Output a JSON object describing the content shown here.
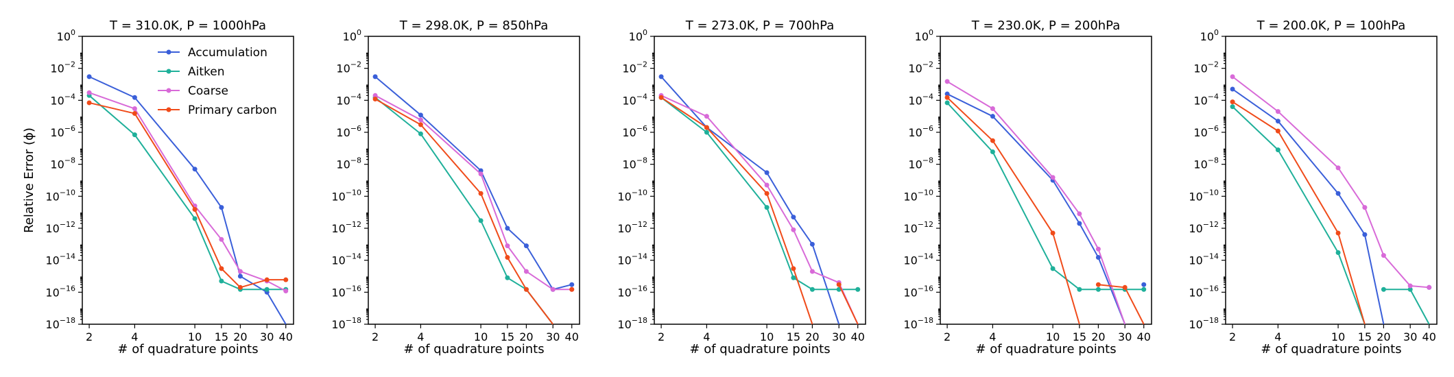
{
  "chart_data": {
    "type": "line",
    "x_scale": "log",
    "y_scale": "log",
    "xlabel": "# of quadrature points",
    "ylabel": "Relative Error (ϕ)",
    "x_ticks": [
      2,
      4,
      10,
      15,
      20,
      30,
      40
    ],
    "y_tick_exponents": [
      -18,
      -16,
      -14,
      -12,
      -10,
      -8,
      -6,
      -4,
      -2,
      0
    ],
    "ylim_exponent": [
      -18,
      0
    ],
    "xlim": [
      1.8,
      45
    ],
    "x": [
      2,
      4,
      10,
      15,
      20,
      30,
      40
    ],
    "legend": {
      "placement": "top-right of first panel",
      "entries": [
        "Accumulation",
        "Aitken",
        "Coarse",
        "Primary carbon"
      ]
    },
    "colors": {
      "Accumulation": "#3a5fd9",
      "Aitken": "#1fb09a",
      "Coarse": "#d86ad8",
      "Primary carbon": "#f04b1a"
    },
    "note_exact_zero": "Series that drop to exactly zero are drawn as a vertical line to the bottom of the axis; null marks such points.",
    "panels": [
      {
        "title": "T = 310.0K, P = 1000hPa",
        "series": [
          {
            "name": "Accumulation",
            "values": [
              0.003,
              0.00015,
              5e-09,
              2e-11,
              1e-15,
              1e-16,
              null
            ]
          },
          {
            "name": "Aitken",
            "values": [
              0.0002,
              7e-07,
              4e-12,
              5e-16,
              1.5e-16,
              1.5e-16,
              1.5e-16
            ]
          },
          {
            "name": "Coarse",
            "values": [
              0.0003,
              3e-05,
              2.5e-11,
              2e-13,
              2e-15,
              5e-16,
              1.2e-16
            ]
          },
          {
            "name": "Primary carbon",
            "values": [
              7e-05,
              1.5e-05,
              1.5e-11,
              3e-15,
              2e-16,
              6e-16,
              6e-16
            ]
          }
        ]
      },
      {
        "title": "T = 298.0K, P = 850hPa",
        "series": [
          {
            "name": "Accumulation",
            "values": [
              0.003,
              1.2e-05,
              4e-09,
              1e-12,
              8e-14,
              1.5e-16,
              3e-16
            ]
          },
          {
            "name": "Aitken",
            "values": [
              0.00015,
              8e-07,
              3e-12,
              8e-16,
              1.5e-16,
              null,
              null
            ]
          },
          {
            "name": "Coarse",
            "values": [
              0.0002,
              6e-06,
              2.5e-09,
              8e-14,
              2e-15,
              1.5e-16,
              1.5e-16
            ]
          },
          {
            "name": "Primary carbon",
            "values": [
              0.00012,
              3e-06,
              1.5e-10,
              1.5e-14,
              1.5e-16,
              null,
              1.5e-16
            ]
          }
        ]
      },
      {
        "title": "T = 273.0K, P = 700hPa",
        "series": [
          {
            "name": "Accumulation",
            "values": [
              0.003,
              2e-06,
              3e-09,
              5e-12,
              1e-13,
              null,
              null
            ]
          },
          {
            "name": "Aitken",
            "values": [
              0.00015,
              1e-06,
              2e-11,
              8e-16,
              1.5e-16,
              1.5e-16,
              1.5e-16
            ]
          },
          {
            "name": "Coarse",
            "values": [
              0.0002,
              1e-05,
              5e-10,
              8e-13,
              2e-15,
              4e-16,
              null
            ]
          },
          {
            "name": "Primary carbon",
            "values": [
              0.00015,
              2e-06,
              1.5e-10,
              3e-15,
              null,
              3e-16,
              null
            ]
          }
        ]
      },
      {
        "title": "T = 230.0K, P = 200hPa",
        "series": [
          {
            "name": "Accumulation",
            "values": [
              0.00025,
              1e-05,
              1e-09,
              2e-12,
              1.5e-14,
              null,
              3e-16
            ]
          },
          {
            "name": "Aitken",
            "values": [
              7e-05,
              6e-08,
              3e-15,
              1.5e-16,
              1.5e-16,
              1.5e-16,
              1.5e-16
            ]
          },
          {
            "name": "Coarse",
            "values": [
              0.0015,
              3e-05,
              1.5e-09,
              8e-12,
              5e-14,
              null,
              null
            ]
          },
          {
            "name": "Primary carbon",
            "values": [
              0.00015,
              3e-07,
              5e-13,
              null,
              3e-16,
              2e-16,
              null
            ]
          }
        ]
      },
      {
        "title": "T = 200.0K, P = 100hPa",
        "series": [
          {
            "name": "Accumulation",
            "values": [
              0.0005,
              5e-06,
              1.5e-10,
              4e-13,
              null,
              null,
              2e-16
            ]
          },
          {
            "name": "Aitken",
            "values": [
              4e-05,
              8e-08,
              3e-14,
              null,
              1.5e-16,
              1.5e-16,
              null
            ]
          },
          {
            "name": "Coarse",
            "values": [
              0.003,
              2e-05,
              6e-09,
              2e-11,
              2e-14,
              2.5e-16,
              2e-16
            ]
          },
          {
            "name": "Primary carbon",
            "values": [
              8e-05,
              1.2e-06,
              5e-13,
              null,
              null,
              null,
              null
            ]
          }
        ]
      }
    ]
  }
}
